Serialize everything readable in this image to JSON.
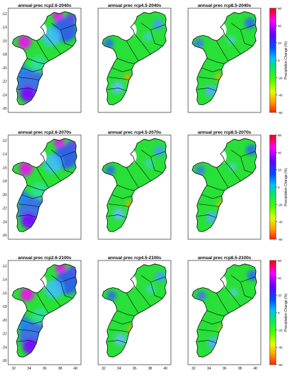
{
  "figure": {
    "panel_titles": [
      [
        "annual prec rcp2.6-2040s",
        "annual prec rcp4.5-2040s",
        "annual prec rcp8.5-2040s"
      ],
      [
        "annual prec rcp2.6-2070s",
        "annual prec rcp4.5-2070s",
        "annual prec rcp8.5-2070s"
      ],
      [
        "annual prec rcp2.6-2100s",
        "annual prec rcp4.5-2100s",
        "annual prec rcp8.5-2100s"
      ]
    ],
    "y_ticks": [
      "-12",
      "-14",
      "-16",
      "-18",
      "-20",
      "-22",
      "-24",
      "-26"
    ],
    "y_ticks_bottom": [
      "-12",
      "-14",
      "-16",
      "-18",
      "-20",
      "-22",
      "-24",
      "-26"
    ],
    "x_ticks": [
      "32",
      "34",
      "36",
      "38",
      "40"
    ],
    "colorbar": {
      "label": "Precipitation Change (%)",
      "ticks": [
        "60",
        "40",
        "20",
        "0",
        "-20",
        "-40",
        "-60"
      ],
      "min": -60,
      "max": 60
    }
  },
  "colors": {
    "wet_strong": "#ff00ff",
    "wet": "#4040ff",
    "moist": "#40a0ff",
    "neutral": "#30e060",
    "dry": "#ffa000",
    "land_bg": "#28e038",
    "boundary": "#000000"
  }
}
